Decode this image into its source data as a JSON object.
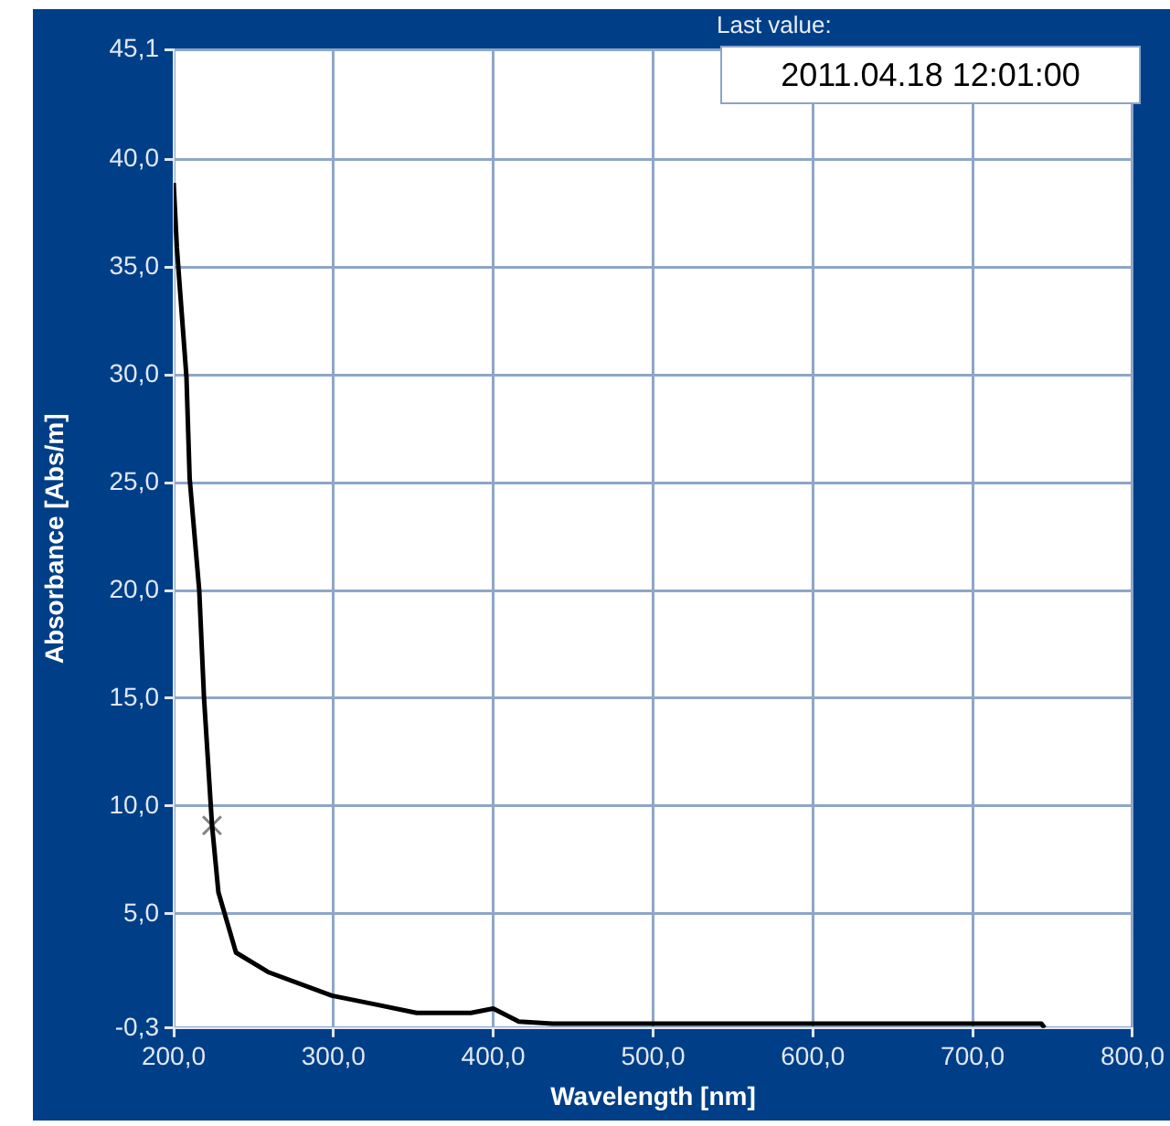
{
  "chart_data": {
    "type": "line",
    "xlabel": "Wavelength [nm]",
    "ylabel": "Absorbance [Abs/m]",
    "annotations": [
      "Last value:",
      "2011.04.18 12:01:00"
    ],
    "xlim": [
      200,
      800
    ],
    "ylim": [
      -0.3,
      45.1
    ],
    "xticks": [
      {
        "value": 200,
        "label": "200,0"
      },
      {
        "value": 300,
        "label": "300,0"
      },
      {
        "value": 400,
        "label": "400,0"
      },
      {
        "value": 500,
        "label": "500,0"
      },
      {
        "value": 600,
        "label": "600,0"
      },
      {
        "value": 700,
        "label": "700,0"
      },
      {
        "value": 800,
        "label": "800,0"
      }
    ],
    "yticks": [
      {
        "value": -0.3,
        "label": "-0,3"
      },
      {
        "value": 5,
        "label": "5,0"
      },
      {
        "value": 10,
        "label": "10,0"
      },
      {
        "value": 15,
        "label": "15,0"
      },
      {
        "value": 20,
        "label": "20,0"
      },
      {
        "value": 25,
        "label": "25,0"
      },
      {
        "value": 30,
        "label": "30,0"
      },
      {
        "value": 35,
        "label": "35,0"
      },
      {
        "value": 40,
        "label": "40,0"
      },
      {
        "value": 45.1,
        "label": "45,1"
      }
    ],
    "grid": true,
    "legend": false,
    "line_style": "solid",
    "series": [
      {
        "color": "#000000",
        "marker": "none",
        "x": [
          200,
          202,
          208,
          210,
          216,
          219,
          224,
          228,
          239,
          259,
          299,
          326,
          352,
          386,
          400,
          416,
          437,
          500,
          600,
          700,
          743,
          745
        ],
        "values": [
          38.9,
          35.9,
          29.9,
          25.2,
          20,
          15,
          9.1,
          6,
          3.2,
          2.3,
          1.2,
          0.8,
          0.4,
          0.4,
          0.6,
          0,
          -0.1,
          -0.1,
          -0.1,
          -0.1,
          -0.1,
          -0.3
        ]
      },
      {
        "type": "scatter",
        "color": "#808080",
        "marker": "cross",
        "x": [
          224
        ],
        "values": [
          9.1
        ]
      }
    ]
  }
}
